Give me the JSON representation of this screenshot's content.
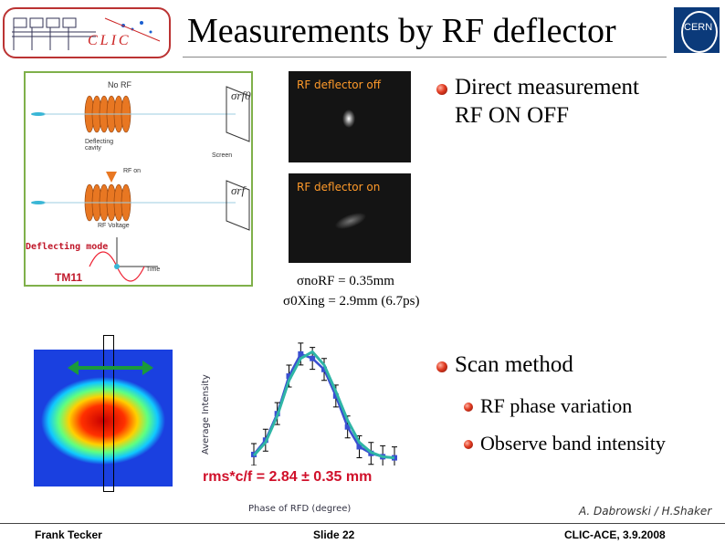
{
  "title": "Measurements by RF deflector",
  "logo": {
    "clic": "CLIC",
    "cern": "CERN"
  },
  "diagram": {
    "no_rf_label": "No RF",
    "sigma_rf0": "σrf0",
    "sigma_rf": "σrf",
    "cavity_label": "Deflecting cavity",
    "screen_label": "Screen",
    "rf_on_label": "RF on",
    "rf_voltage_label": "RF Voltage",
    "deflecting_mode": "Deflecting mode",
    "tm_mode": "TM11",
    "time_label": "Time"
  },
  "rf_images": {
    "off_label": "RF deflector off",
    "on_label": "RF deflector on"
  },
  "sigma_text": {
    "line1": "σnoRF = 0.35mm",
    "line2": "σ0Xing = 2.9mm (6.7ps)"
  },
  "bullets": [
    {
      "text_line1": "Direct measurement",
      "text_line2": "RF ON  OFF"
    },
    {
      "text": "Scan method"
    }
  ],
  "sub_bullets": [
    "RF phase variation",
    "Observe band intensity"
  ],
  "scan_plot": {
    "ylabel": "Average Intensity",
    "xlabel": "Phase of RFD (degree)",
    "result": "rms*c/f = 2.84 ± 0.35 mm"
  },
  "chart_data": {
    "type": "line",
    "title": "",
    "xlabel": "Phase of RFD (degree)",
    "ylabel": "Average Intensity",
    "series": [
      {
        "values": [
          0.05,
          0.18,
          0.42,
          0.76,
          0.96,
          0.92,
          0.82,
          0.58,
          0.3,
          0.12,
          0.06,
          0.03,
          0.02
        ]
      },
      {
        "values": [
          0.04,
          0.16,
          0.4,
          0.72,
          0.92,
          0.98,
          0.86,
          0.62,
          0.36,
          0.16,
          0.07,
          0.03,
          0.02
        ]
      }
    ],
    "colors": [
      "#3a4fd0",
      "#2fb5a6"
    ],
    "grid": false
  },
  "credit": "A. Dabrowski / H.Shaker",
  "footer": {
    "left": "Frank Tecker",
    "center": "Slide 22",
    "right": "CLIC-ACE, 3.9.2008"
  }
}
